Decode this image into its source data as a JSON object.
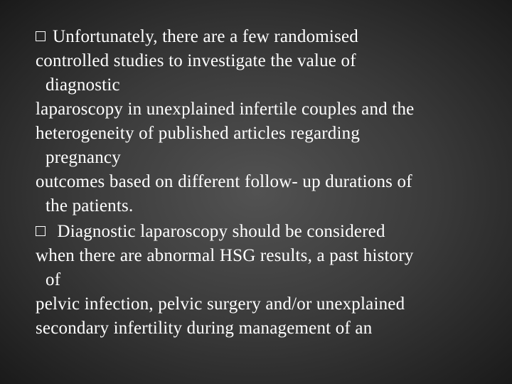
{
  "slide": {
    "text_color": "#ffffff",
    "background_center": "#525252",
    "background_edge": "#1a1a1a",
    "font_family": "Georgia, 'Times New Roman', serif",
    "font_size_pt": 19,
    "bullets": [
      {
        "marker": "square",
        "lines": [
          "Unfortunately, there are a few randomised",
          "controlled studies to investigate the value of",
          "diagnostic",
          "laparoscopy in unexplained infertile couples and the",
          "heterogeneity of published articles regarding",
          "pregnancy",
          "outcomes based on different follow- up durations of",
          "the patients."
        ],
        "indent_lines": [
          2,
          5,
          7
        ]
      },
      {
        "marker": "square",
        "lines": [
          " Diagnostic laparoscopy should be considered",
          "when there are abnormal HSG results, a past history",
          "of",
          "pelvic infection, pelvic surgery and/or unexplained",
          "secondary infertility during management of an"
        ],
        "indent_lines": [
          2
        ]
      }
    ]
  }
}
